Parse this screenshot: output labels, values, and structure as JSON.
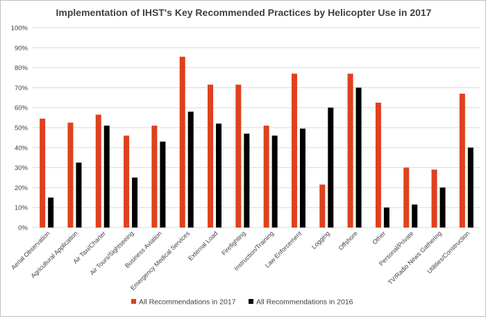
{
  "chart_data": {
    "type": "bar",
    "title": "Implementation of IHST's Key Recommended Practices by Helicopter Use in 2017",
    "xlabel": "",
    "ylabel": "",
    "ylim": [
      0,
      100
    ],
    "yticks": [
      "0%",
      "10%",
      "20%",
      "30%",
      "40%",
      "50%",
      "60%",
      "70%",
      "80%",
      "90%",
      "100%"
    ],
    "grid": true,
    "legend_position": "bottom",
    "categories": [
      "Aerial Observation",
      "Agricultural Application",
      "Air Taxi/Charter",
      "Air Tours/Sightseeing",
      "Business Aviation",
      "Emergency Medical Services",
      "External Load",
      "Firefighting",
      "Instruction/Training",
      "Law Enforcement",
      "Logging",
      "Offshore",
      "Other",
      "Personal/Private",
      "TV/Radio News Gathering",
      "Utilities/Construction"
    ],
    "series": [
      {
        "name": "All Recommendations in 2017",
        "color": "#e0401e",
        "values": [
          54.5,
          52.5,
          56.5,
          46,
          51,
          85.5,
          71.5,
          71.5,
          51,
          77,
          21.5,
          77,
          62.5,
          30,
          29,
          67
        ]
      },
      {
        "name": "All Recommendations in 2016",
        "color": "#000000",
        "values": [
          15,
          32.5,
          51,
          25,
          43,
          58,
          52,
          47,
          46,
          49.5,
          60,
          70,
          10,
          11.5,
          20,
          40
        ]
      }
    ]
  }
}
